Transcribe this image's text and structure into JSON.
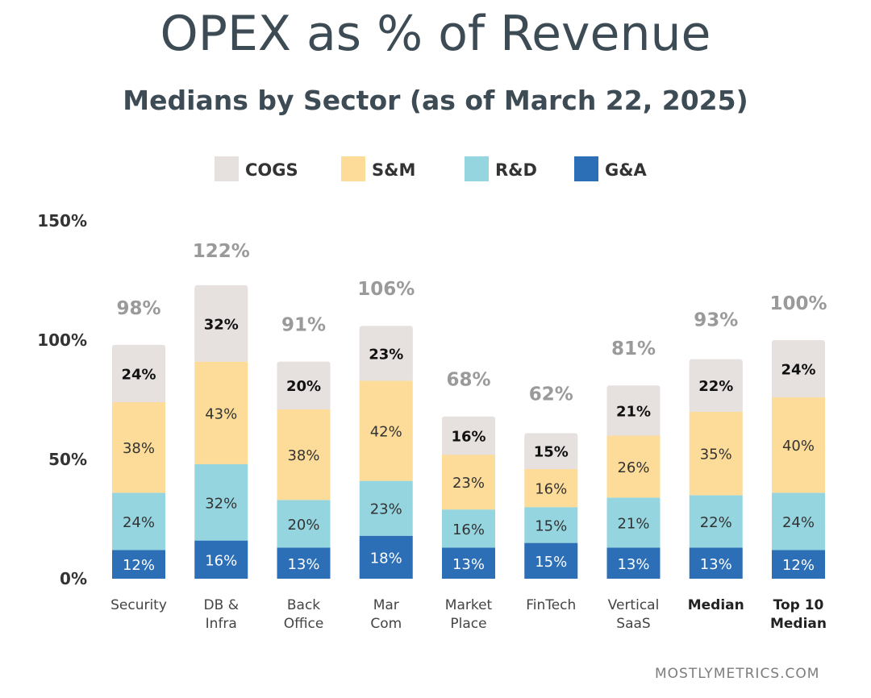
{
  "title": "OPEX as % of Revenue",
  "subtitle": "Medians by Sector (as of March 22, 2025)",
  "footer": "MOSTLYMETRICS.COM",
  "chart_data": {
    "type": "bar",
    "stacked": true,
    "categories": [
      [
        "Security"
      ],
      [
        "DB &",
        "Infra"
      ],
      [
        "Back",
        "Office"
      ],
      [
        "Mar",
        "Com"
      ],
      [
        "Market",
        "Place"
      ],
      [
        "FinTech"
      ],
      [
        "Vertical",
        "SaaS"
      ],
      [
        "Median"
      ],
      [
        "Top 10",
        "Median"
      ]
    ],
    "bold_categories": [
      7,
      8
    ],
    "totals": [
      98,
      122,
      91,
      106,
      68,
      62,
      81,
      93,
      100
    ],
    "total_labels": [
      "98%",
      "122%",
      "91%",
      "106%",
      "68%",
      "62%",
      "81%",
      "93%",
      "100%"
    ],
    "series": [
      {
        "name": "G&A",
        "color": "#2c6fb7",
        "label_color": "#ffffff",
        "label_bold": false,
        "values": [
          12,
          16,
          13,
          18,
          13,
          15,
          13,
          13,
          12
        ],
        "labels": [
          "12%",
          "16%",
          "13%",
          "18%",
          "13%",
          "15%",
          "13%",
          "13%",
          "12%"
        ]
      },
      {
        "name": "R&D",
        "color": "#95d5e0",
        "label_color": "#333333",
        "label_bold": false,
        "values": [
          24,
          32,
          20,
          23,
          16,
          15,
          21,
          22,
          24
        ],
        "labels": [
          "24%",
          "32%",
          "20%",
          "23%",
          "16%",
          "15%",
          "21%",
          "22%",
          "24%"
        ]
      },
      {
        "name": "S&M",
        "color": "#fcdc98",
        "label_color": "#333333",
        "label_bold": false,
        "values": [
          38,
          43,
          38,
          42,
          23,
          16,
          26,
          35,
          40
        ],
        "labels": [
          "38%",
          "43%",
          "38%",
          "42%",
          "23%",
          "16%",
          "26%",
          "35%",
          "40%"
        ]
      },
      {
        "name": "COGS",
        "color": "#e6e0df",
        "label_color": "#111111",
        "label_bold": true,
        "values": [
          24,
          32,
          20,
          23,
          16,
          15,
          21,
          22,
          24
        ],
        "labels": [
          "24%",
          "32%",
          "20%",
          "23%",
          "16%",
          "15%",
          "21%",
          "22%",
          "24%"
        ]
      }
    ],
    "legend_order": [
      "COGS",
      "S&M",
      "R&D",
      "G&A"
    ],
    "legend_placement": "top-center",
    "y_ticks": [
      0,
      50,
      100,
      150
    ],
    "y_tick_labels": [
      "0%",
      "50%",
      "100%",
      "150%"
    ],
    "ylim": [
      0,
      150
    ],
    "grid": false,
    "xlabel": "",
    "ylabel": ""
  }
}
